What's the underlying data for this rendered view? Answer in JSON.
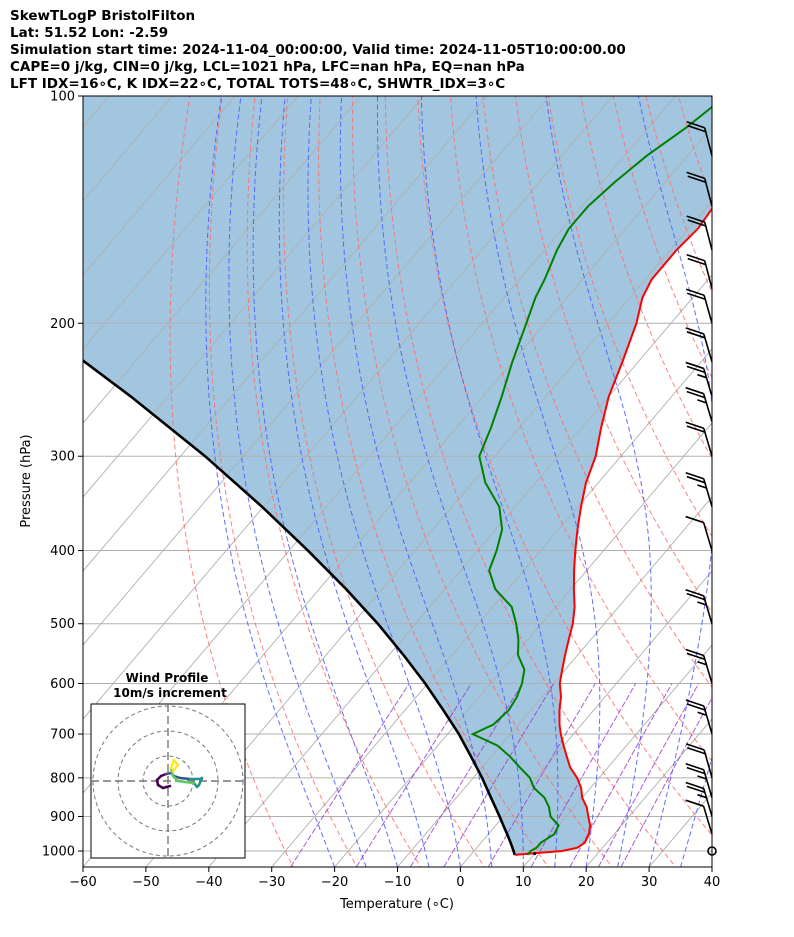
{
  "header": {
    "line1": "SkewTLogP BristolFilton",
    "line2": "Lat: 51.52   Lon: -2.59",
    "line3": "Simulation start time: 2024-11-04_00:00:00, Valid time: 2024-11-05T10:00:00.00",
    "line4": "CAPE=0 j/kg, CIN=0 j/kg, LCL=1021 hPa, LFC=nan hPa, EQ=nan hPa",
    "line5": "LFT IDX=16∘C, K IDX=22∘C, TOTAL TOTS=48∘C, SHWTR_IDX=3∘C"
  },
  "chart_data": {
    "type": "line",
    "subtype": "skewt-logp",
    "xlabel": "Temperature (∘C)",
    "ylabel": "Pressure (hPa)",
    "xlim": [
      -60,
      40
    ],
    "ylim": [
      1050,
      100
    ],
    "y_scale": "log",
    "grid": true,
    "x_ticks": [
      -60,
      -50,
      -40,
      -30,
      -20,
      -10,
      0,
      10,
      20,
      30,
      40
    ],
    "x_tick_labels": [
      "−60",
      "−50",
      "−40",
      "−30",
      "−20",
      "−10",
      "0",
      "10",
      "20",
      "30",
      "40"
    ],
    "y_ticks": [
      1000,
      900,
      800,
      700,
      600,
      500,
      400,
      300,
      200,
      100
    ],
    "y_tick_labels": [
      "1000",
      "900",
      "800",
      "700",
      "600",
      "500",
      "400",
      "300",
      "200",
      "100"
    ],
    "colors": {
      "temperature": "#ff0000",
      "dewpoint": "#008000",
      "parcel": "#000000",
      "shading": "#a2c6df",
      "dry_adiabats": "#ff6b6b",
      "moist_adiabats": "#4d5eff",
      "mixing_ratio": "#9b3fd0",
      "isotherms": "#b0b0b0",
      "wind_barbs": "#000000"
    },
    "series": [
      {
        "role": "temperature",
        "points": [
          [
            7,
            1012
          ],
          [
            11,
            1005
          ],
          [
            14,
            1000
          ],
          [
            16,
            990
          ],
          [
            16.5,
            975
          ],
          [
            16,
            950
          ],
          [
            15,
            925
          ],
          [
            13.5,
            900
          ],
          [
            12,
            875
          ],
          [
            10,
            850
          ],
          [
            8.5,
            825
          ],
          [
            6.5,
            800
          ],
          [
            4,
            775
          ],
          [
            2,
            750
          ],
          [
            0,
            725
          ],
          [
            -2,
            700
          ],
          [
            -3.5,
            680
          ],
          [
            -5.5,
            650
          ],
          [
            -7,
            625
          ],
          [
            -9,
            600
          ],
          [
            -10.5,
            575
          ],
          [
            -12,
            550
          ],
          [
            -13.5,
            525
          ],
          [
            -15,
            500
          ],
          [
            -17,
            475
          ],
          [
            -19.5,
            450
          ],
          [
            -22,
            425
          ],
          [
            -24.5,
            400
          ],
          [
            -27,
            375
          ],
          [
            -29.5,
            350
          ],
          [
            -32,
            325
          ],
          [
            -34,
            300
          ],
          [
            -37,
            275
          ],
          [
            -40,
            250
          ],
          [
            -42.5,
            225
          ],
          [
            -45.5,
            200
          ],
          [
            -48,
            185
          ],
          [
            -49,
            175
          ],
          [
            -49,
            160
          ],
          [
            -48.5,
            150
          ],
          [
            -49,
            140
          ],
          [
            -50,
            130
          ],
          [
            -52,
            120
          ],
          [
            -53,
            110
          ],
          [
            -53.5,
            100
          ]
        ]
      },
      {
        "role": "dewpoint",
        "points": [
          [
            9,
            1012
          ],
          [
            9,
            1000
          ],
          [
            9.5,
            990
          ],
          [
            9.5,
            975
          ],
          [
            10.5,
            950
          ],
          [
            10,
            925
          ],
          [
            7.5,
            900
          ],
          [
            6,
            875
          ],
          [
            4,
            850
          ],
          [
            1,
            825
          ],
          [
            -1,
            800
          ],
          [
            -4,
            775
          ],
          [
            -7,
            750
          ],
          [
            -10.5,
            725
          ],
          [
            -16,
            700
          ],
          [
            -14,
            680
          ],
          [
            -13.5,
            650
          ],
          [
            -14,
            625
          ],
          [
            -15,
            600
          ],
          [
            -16.5,
            575
          ],
          [
            -19.5,
            550
          ],
          [
            -21.5,
            525
          ],
          [
            -24,
            500
          ],
          [
            -27,
            475
          ],
          [
            -32,
            450
          ],
          [
            -35.5,
            425
          ],
          [
            -37,
            400
          ],
          [
            -39,
            375
          ],
          [
            -42.5,
            350
          ],
          [
            -48,
            325
          ],
          [
            -52.5,
            300
          ],
          [
            -54.5,
            275
          ],
          [
            -57,
            250
          ],
          [
            -60,
            225
          ],
          [
            -63,
            200
          ],
          [
            -65,
            185
          ],
          [
            -66,
            175
          ],
          [
            -68,
            160
          ],
          [
            -69,
            150
          ],
          [
            -69,
            140
          ],
          [
            -68,
            130
          ],
          [
            -66.5,
            120
          ],
          [
            -64,
            110
          ],
          [
            -62,
            100
          ]
        ]
      },
      {
        "role": "parcel",
        "points": [
          [
            7,
            1012
          ],
          [
            6.3,
            1000
          ],
          [
            4.7,
            975
          ],
          [
            3,
            950
          ],
          [
            1.2,
            925
          ],
          [
            -0.6,
            900
          ],
          [
            -4.5,
            850
          ],
          [
            -8.6,
            800
          ],
          [
            -13.2,
            750
          ],
          [
            -18.2,
            700
          ],
          [
            -24,
            650
          ],
          [
            -30.4,
            600
          ],
          [
            -37.7,
            550
          ],
          [
            -46,
            500
          ],
          [
            -55.7,
            450
          ],
          [
            -67,
            400
          ],
          [
            -80.2,
            350
          ],
          [
            -96.1,
            300
          ],
          [
            -116,
            250
          ],
          [
            -141.4,
            200
          ],
          [
            -176,
            150
          ],
          [
            -211,
            120
          ],
          [
            -229,
            110
          ],
          [
            -244,
            100
          ]
        ]
      }
    ],
    "wind_barbs": [
      {
        "p": 1000,
        "speed": 5,
        "dir": 40
      },
      {
        "p": 950,
        "speed": 10,
        "dir": 90
      },
      {
        "p": 900,
        "speed": 15,
        "dir": 100
      },
      {
        "p": 850,
        "speed": 15,
        "dir": 100
      },
      {
        "p": 800,
        "speed": 20,
        "dir": 110
      },
      {
        "p": 700,
        "speed": 15,
        "dir": 105
      },
      {
        "p": 600,
        "speed": 15,
        "dir": 100
      },
      {
        "p": 500,
        "speed": 15,
        "dir": 95
      },
      {
        "p": 400,
        "speed": 10,
        "dir": 85
      },
      {
        "p": 350,
        "speed": 15,
        "dir": 100
      },
      {
        "p": 300,
        "speed": 20,
        "dir": 100
      },
      {
        "p": 270,
        "speed": 15,
        "dir": 95
      },
      {
        "p": 250,
        "speed": 15,
        "dir": 100
      },
      {
        "p": 225,
        "speed": 20,
        "dir": 100
      },
      {
        "p": 200,
        "speed": 20,
        "dir": 110
      },
      {
        "p": 180,
        "speed": 20,
        "dir": 120
      },
      {
        "p": 160,
        "speed": 20,
        "dir": 120
      },
      {
        "p": 140,
        "speed": 20,
        "dir": 120
      },
      {
        "p": 120,
        "speed": 20,
        "dir": 120
      }
    ],
    "inset": {
      "title": "Wind Profile",
      "subtitle": "10m/s increment",
      "rings": 3,
      "hodograph": [
        [
          0.2,
          -0.5
        ],
        [
          -0.5,
          -0.7
        ],
        [
          -1,
          -0.4
        ],
        [
          -1.1,
          0.1
        ],
        [
          -0.7,
          0.5
        ],
        [
          -0.2,
          0.7
        ],
        [
          0.3,
          0.8
        ],
        [
          0.6,
          0.5
        ],
        [
          1.2,
          0.3
        ],
        [
          2.2,
          0.2
        ],
        [
          3.2,
          0.2
        ],
        [
          3.4,
          0.3
        ],
        [
          3.1,
          -0.4
        ],
        [
          2.9,
          -0.6
        ],
        [
          2.6,
          -0.2
        ],
        [
          1.7,
          -0.1
        ],
        [
          1.0,
          0.0
        ],
        [
          0.5,
          0.5
        ],
        [
          0.3,
          1.3
        ],
        [
          0.6,
          2.1
        ],
        [
          1.0,
          1.6
        ],
        [
          0.5,
          1.0
        ]
      ]
    }
  }
}
